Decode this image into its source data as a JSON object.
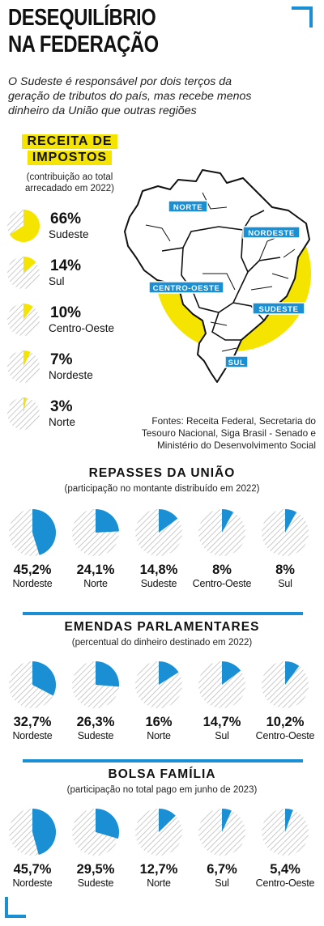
{
  "title_line1": "DESEQUILÍBRIO",
  "title_line2": "NA FEDERAÇÃO",
  "subtitle": "O Sudeste é responsável por dois terços da geração de tributos do país, mas recebe menos dinheiro da União que outras regiões",
  "receita": {
    "label_line1": "RECEITA DE",
    "label_line2": "IMPOSTOS",
    "subtitle": "(contribuição ao total arrecadado em 2022)"
  },
  "map_labels": [
    "NORTE",
    "NORDESTE",
    "CENTRO-OESTE",
    "SUDESTE",
    "SUL"
  ],
  "fontes": "Fontes: Receita Federal, Secretaria do Tesouro Nacional, Siga Brasil - Senado e Ministério do Desenvolvimento Social",
  "repasses": {
    "title": "REPASSES DA UNIÃO",
    "subtitle": "(participação no montante distribuído em 2022)"
  },
  "emendas": {
    "title": "EMENDAS PARLAMENTARES",
    "subtitle": "(percentual do dinheiro destinado em 2022)"
  },
  "bolsa": {
    "title": "BOLSA FAMÍLIA",
    "subtitle": "(participação no total pago em junho de 2023)"
  },
  "colors": {
    "yellow": "#f5e400",
    "blue": "#1a8fd4",
    "hatch": "#bdbdbd"
  },
  "chart_data": [
    {
      "type": "pie",
      "title": "RECEITA DE IMPOSTOS",
      "subtitle": "(contribuição ao total arrecadado em 2022)",
      "categories": [
        "Sudeste",
        "Sul",
        "Centro-Oeste",
        "Nordeste",
        "Norte"
      ],
      "values": [
        66,
        14,
        10,
        7,
        3
      ],
      "labels": [
        "66%",
        "14%",
        "10%",
        "7%",
        "3%"
      ],
      "color": "#f5e400"
    },
    {
      "type": "pie",
      "title": "REPASSES DA UNIÃO",
      "subtitle": "(participação no montante distribuído em 2022)",
      "categories": [
        "Nordeste",
        "Norte",
        "Sudeste",
        "Centro-Oeste",
        "Sul"
      ],
      "values": [
        45.2,
        24.1,
        14.8,
        8,
        8
      ],
      "labels": [
        "45,2%",
        "24,1%",
        "14,8%",
        "8%",
        "8%"
      ],
      "color": "#1a8fd4"
    },
    {
      "type": "pie",
      "title": "EMENDAS PARLAMENTARES",
      "subtitle": "(percentual do dinheiro destinado em 2022)",
      "categories": [
        "Nordeste",
        "Sudeste",
        "Norte",
        "Sul",
        "Centro-Oeste"
      ],
      "values": [
        32.7,
        26.3,
        16,
        14.7,
        10.2
      ],
      "labels": [
        "32,7%",
        "26,3%",
        "16%",
        "14,7%",
        "10,2%"
      ],
      "color": "#1a8fd4"
    },
    {
      "type": "pie",
      "title": "BOLSA FAMÍLIA",
      "subtitle": "(participação no total pago em junho de 2023)",
      "categories": [
        "Nordeste",
        "Sudeste",
        "Norte",
        "Sul",
        "Centro-Oeste"
      ],
      "values": [
        45.7,
        29.5,
        12.7,
        6.7,
        5.4
      ],
      "labels": [
        "45,7%",
        "29,5%",
        "12,7%",
        "6,7%",
        "5,4%"
      ],
      "color": "#1a8fd4"
    }
  ]
}
